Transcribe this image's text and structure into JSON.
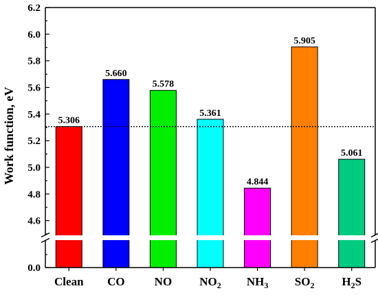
{
  "chart_data": {
    "type": "bar",
    "ylabel": "Work function, eV",
    "categories": [
      {
        "base": "Clean",
        "sub": ""
      },
      {
        "base": "CO",
        "sub": ""
      },
      {
        "base": "NO",
        "sub": ""
      },
      {
        "base": "NO",
        "sub": "2"
      },
      {
        "base": "NH",
        "sub": "3"
      },
      {
        "base": "SO",
        "sub": "2"
      },
      {
        "base": "H",
        "sub": "2",
        "tail": "S"
      }
    ],
    "values": [
      5.306,
      5.66,
      5.578,
      5.361,
      4.844,
      5.905,
      5.061
    ],
    "value_labels": [
      "5.306",
      "5.660",
      "5.578",
      "5.361",
      "4.844",
      "5.905",
      "5.061"
    ],
    "colors": [
      "#ff0000",
      "#0000ff",
      "#00ee00",
      "#00ffff",
      "#ff00ff",
      "#ff8000",
      "#00cc80"
    ],
    "y_axis": {
      "type": "broken",
      "lower_segment": [
        0.0,
        0.2
      ],
      "upper_segment": [
        4.5,
        6.2
      ],
      "lower_ticks": [
        "0.0"
      ],
      "upper_ticks": [
        "4.6",
        "4.8",
        "5.0",
        "5.2",
        "5.4",
        "5.6",
        "5.8",
        "6.0",
        "6.2"
      ]
    },
    "reference_line": {
      "value": 5.306,
      "style": "dotted"
    },
    "grid": false,
    "legend": "none"
  }
}
